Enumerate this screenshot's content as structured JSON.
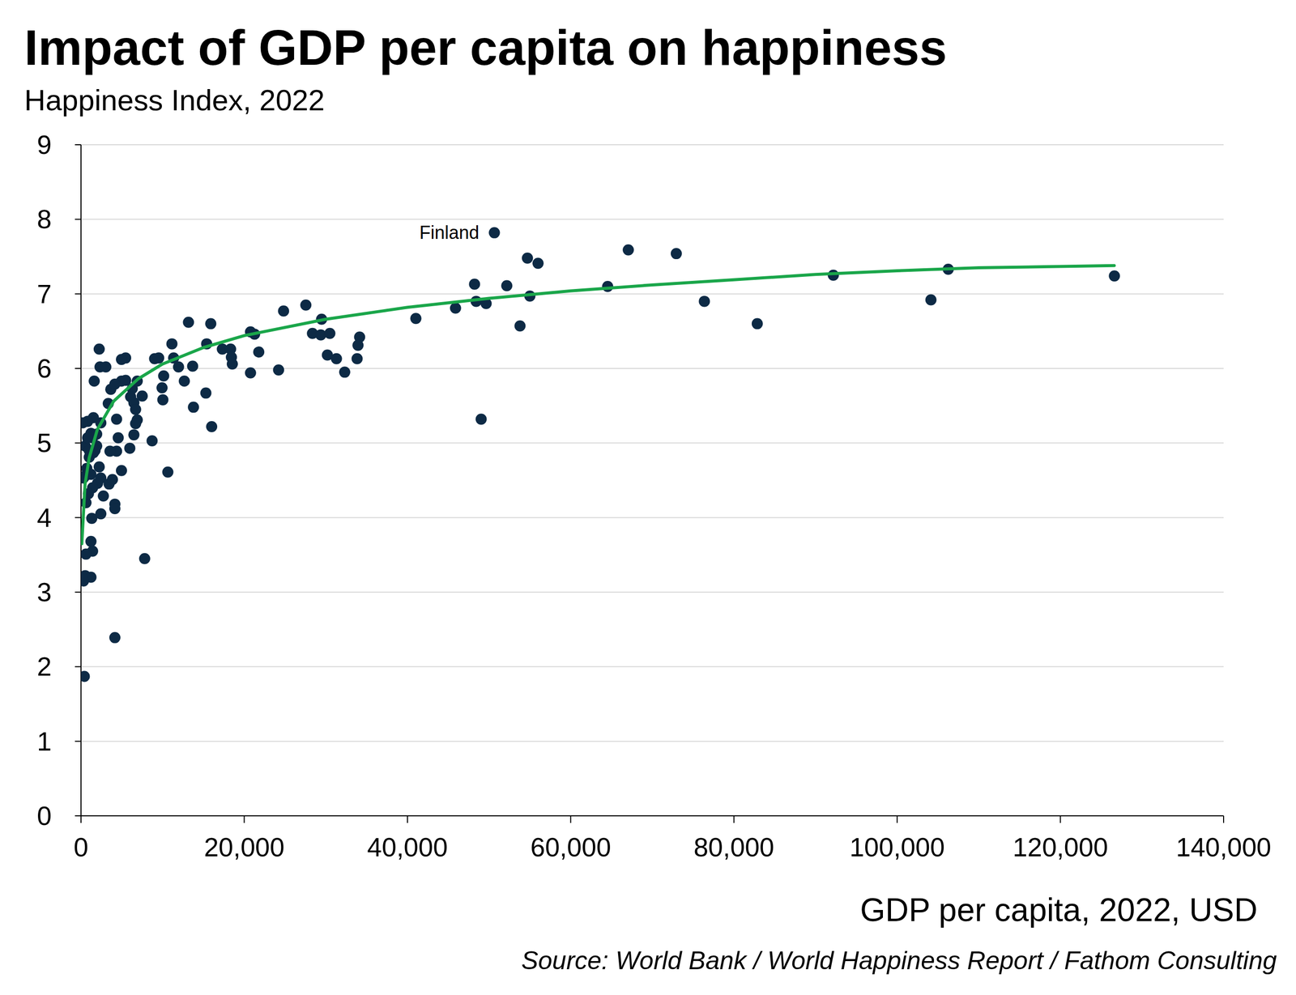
{
  "chart_data": {
    "type": "scatter",
    "title": "Impact of GDP per capita on happiness",
    "subtitle": "Happiness Index, 2022",
    "x_label": "GDP per capita, 2022, USD",
    "source": "Source: World Bank / World Happiness Report / Fathom Consulting",
    "annotations": [
      {
        "text": "Finland",
        "x": 50650,
        "y": 7.82
      }
    ],
    "xlim": [
      0,
      140000
    ],
    "ylim": [
      0,
      9
    ],
    "xticks": [
      0,
      {
        "value": 20000,
        "label": "20,000"
      },
      {
        "value": 40000,
        "label": "40,000"
      },
      {
        "value": 60000,
        "label": "60,000"
      },
      {
        "value": 80000,
        "label": "80,000"
      },
      {
        "value": 100000,
        "label": "100,000"
      },
      {
        "value": 120000,
        "label": "120,000"
      },
      {
        "value": 140000,
        "label": "140,000"
      }
    ],
    "yticks": [
      0,
      1,
      2,
      3,
      4,
      5,
      6,
      7,
      8,
      9
    ],
    "grid": true,
    "series": [
      {
        "type": "scatter",
        "color": "#0d2a45",
        "marker": "circle",
        "x": [
          50650,
          54700,
          56000,
          67060,
          72940,
          48220,
          52170,
          55000,
          45890,
          48420,
          49640,
          64530,
          53790,
          49030,
          41030,
          76380,
          82860,
          92180,
          104140,
          106260,
          126620,
          27550,
          24820,
          29480,
          28360,
          29380,
          30490,
          30190,
          31300,
          32310,
          33830,
          34140,
          33940,
          20770,
          21270,
          21780,
          20770,
          24210,
          13170,
          15900,
          15400,
          17320,
          18330,
          18540,
          18430,
          13680,
          15300,
          13780,
          16010,
          11140,
          11350,
          11950,
          12660,
          9020,
          9520,
          10130,
          9930,
          10030,
          8710,
          10640,
          7800,
          4150,
          405,
          2230,
          2330,
          3040,
          1620,
          4960,
          5470,
          5470,
          4960,
          6280,
          6890,
          7500,
          6080,
          6480,
          6690,
          3650,
          4150,
          3340,
          6890,
          6690,
          6480,
          5980,
          4560,
          4360,
          4960,
          4360,
          3550,
          2430,
          1520,
          810,
          200,
          510,
          1220,
          1920,
          1420,
          1920,
          1520,
          1010,
          710,
          510,
          300,
          1220,
          2230,
          2030,
          1420,
          2430,
          2740,
          3440,
          3850,
          4150,
          4150,
          2430,
          1320,
          610,
          910,
          1220,
          1420,
          610,
          510,
          1220,
          300,
          1720,
          1010,
          810
        ],
        "values": [
          7.82,
          7.48,
          7.41,
          7.59,
          7.54,
          7.13,
          7.11,
          6.97,
          6.81,
          6.9,
          6.87,
          7.1,
          6.57,
          5.32,
          6.67,
          6.9,
          6.6,
          7.25,
          6.92,
          7.33,
          7.24,
          6.85,
          6.77,
          6.66,
          6.47,
          6.45,
          6.47,
          6.18,
          6.13,
          5.95,
          6.13,
          6.42,
          6.31,
          6.49,
          6.46,
          6.22,
          5.94,
          5.98,
          6.62,
          6.6,
          6.33,
          6.26,
          6.26,
          6.06,
          6.15,
          6.03,
          5.67,
          5.48,
          5.22,
          6.33,
          6.14,
          6.02,
          5.83,
          6.13,
          6.14,
          5.9,
          5.74,
          5.58,
          5.03,
          4.61,
          3.45,
          2.39,
          1.87,
          6.26,
          6.02,
          6.02,
          5.83,
          5.83,
          5.84,
          6.14,
          6.12,
          5.73,
          5.83,
          5.63,
          5.62,
          5.54,
          5.45,
          5.72,
          5.79,
          5.53,
          5.31,
          5.26,
          5.11,
          4.93,
          5.07,
          4.89,
          4.63,
          5.32,
          4.89,
          5.27,
          5.34,
          5.29,
          5.27,
          4.96,
          5.13,
          5.12,
          5.07,
          4.96,
          4.87,
          4.81,
          4.66,
          4.56,
          4.53,
          4.58,
          4.68,
          4.46,
          4.4,
          4.53,
          4.29,
          4.45,
          4.51,
          4.18,
          4.12,
          4.05,
          3.99,
          4.2,
          4.32,
          3.68,
          3.55,
          3.51,
          3.22,
          3.2,
          3.15,
          4.9,
          4.9,
          5.07
        ]
      },
      {
        "type": "line",
        "color": "#1aa64a",
        "line_style": "solid",
        "x": [
          100,
          500,
          1000,
          2000,
          4000,
          7000,
          10000,
          15000,
          20000,
          30000,
          40000,
          50000,
          60000,
          70000,
          80000,
          90000,
          100000,
          110000,
          126600
        ],
        "values": [
          3.65,
          4.45,
          4.8,
          5.18,
          5.56,
          5.86,
          6.06,
          6.28,
          6.44,
          6.66,
          6.82,
          6.94,
          7.04,
          7.12,
          7.19,
          7.26,
          7.31,
          7.35,
          7.38
        ]
      }
    ]
  }
}
